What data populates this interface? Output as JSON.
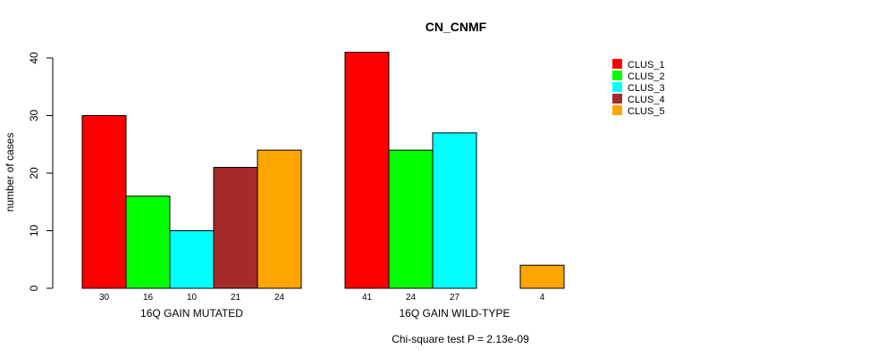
{
  "chart_data": {
    "type": "bar",
    "title": "CN_CNMF",
    "ylabel": "number of cases",
    "ylim": [
      0,
      40
    ],
    "yticks": [
      0,
      10,
      20,
      30,
      40
    ],
    "footnote": "Chi-square test P = 2.13e-09",
    "grid": false,
    "legend_position": "top-right",
    "series": [
      {
        "name": "CLUS_1",
        "color": "#ff0000"
      },
      {
        "name": "CLUS_2",
        "color": "#00ff00"
      },
      {
        "name": "CLUS_3",
        "color": "#00ffff"
      },
      {
        "name": "CLUS_4",
        "color": "#a52a2a"
      },
      {
        "name": "CLUS_5",
        "color": "#ffa500"
      }
    ],
    "groups": [
      {
        "label": "16Q GAIN MUTATED",
        "values": [
          30,
          16,
          10,
          21,
          24
        ],
        "value_labels": [
          "30",
          "16",
          "10",
          "21",
          "24"
        ]
      },
      {
        "label": "16Q GAIN WILD-TYPE",
        "values": [
          41,
          24,
          27,
          0,
          4
        ],
        "value_labels": [
          "41",
          "24",
          "27",
          "",
          "4"
        ]
      }
    ]
  }
}
